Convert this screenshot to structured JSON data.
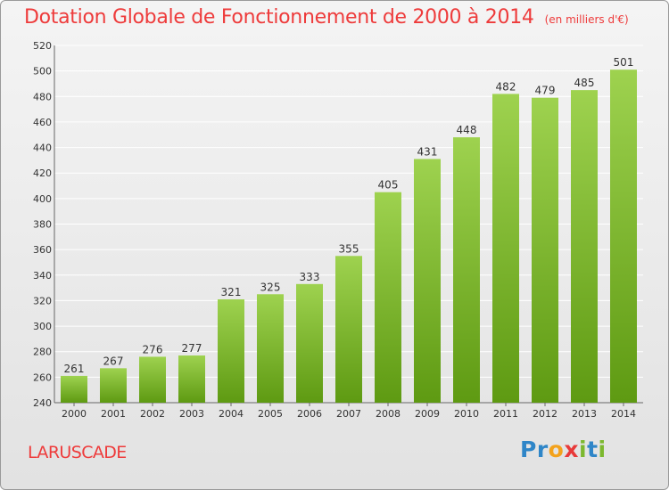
{
  "header": {
    "title": "Dotation Globale de Fonctionnement de 2000 à 2014",
    "subtitle": "(en milliers d'€)"
  },
  "footer": {
    "commune": "LARUSCADE",
    "logo_text": "Proxiti"
  },
  "colors": {
    "bar_light": "#9ed24f",
    "bar_dark": "#5e9a12",
    "title": "#ee3b3b",
    "grid": "#ffffff"
  },
  "chart_data": {
    "type": "bar",
    "title": "Dotation Globale de Fonctionnement de 2000 à 2014",
    "subtitle": "(en milliers d'€)",
    "categories": [
      "2000",
      "2001",
      "2002",
      "2003",
      "2004",
      "2005",
      "2006",
      "2007",
      "2008",
      "2009",
      "2010",
      "2011",
      "2012",
      "2013",
      "2014"
    ],
    "values": [
      261,
      267,
      276,
      277,
      321,
      325,
      333,
      355,
      405,
      431,
      448,
      482,
      479,
      485,
      501
    ],
    "ylim": [
      240,
      520
    ],
    "ytick_step": 20,
    "xlabel": "",
    "ylabel": "",
    "grid": true,
    "legend": "none"
  }
}
